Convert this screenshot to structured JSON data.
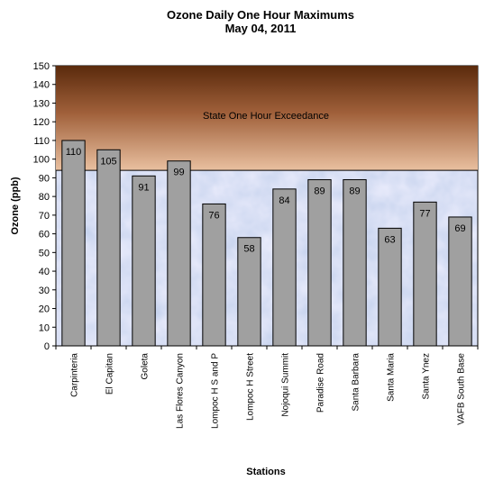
{
  "chart_data": {
    "type": "bar",
    "title": "Ozone Daily One Hour Maximums",
    "subtitle": "May 04, 2011",
    "xlabel": "Stations",
    "ylabel": "Ozone (ppb)",
    "ylim": [
      0,
      150
    ],
    "ytick_step": 10,
    "grid": false,
    "legend": "none",
    "categories": [
      "Carpinteria",
      "El Capitan",
      "Goleta",
      "Las Flores Canyon",
      "Lompoc H S and P",
      "Lompoc H Street",
      "Nojoqui Summit",
      "Paradise Road",
      "Santa Barbara",
      "Santa Maria",
      "Santa Ynez",
      "VAFB South Base"
    ],
    "values": [
      110,
      105,
      91,
      99,
      76,
      58,
      84,
      89,
      89,
      63,
      77,
      69
    ],
    "threshold": {
      "value": 94,
      "label": "State One Hour Exceedance"
    },
    "colors": {
      "bar": "#a0a0a0",
      "bar_stroke": "#000000",
      "exceedance_top": "#5a2a0c",
      "exceedance_bottom": "#e9c0a0",
      "plot_bg": "#c8d4ee"
    }
  }
}
